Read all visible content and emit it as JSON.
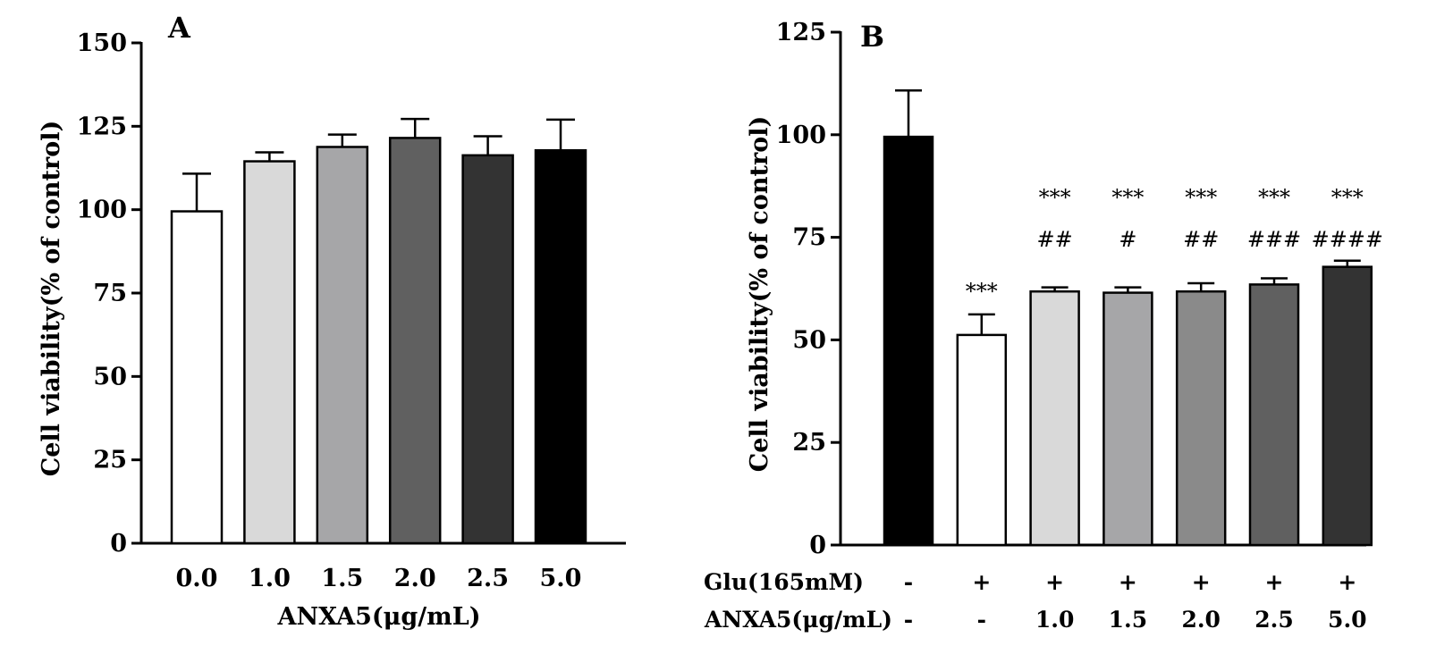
{
  "chart_data": [
    {
      "type": "bar",
      "panel_label": "A",
      "title": "",
      "xlabel": "ANXA5(μg/mL)",
      "ylabel": "Cell viability(% of control)",
      "ylim": [
        0,
        150
      ],
      "yticks": [
        "0",
        "25",
        "50",
        "75",
        "100",
        "125",
        "150"
      ],
      "categories": [
        "0.0",
        "1.0",
        "1.5",
        "2.0",
        "2.5",
        "5.0"
      ],
      "values": [
        99.5,
        114.5,
        118.8,
        121.5,
        116.3,
        117.8
      ],
      "errors": [
        11.3,
        2.7,
        3.7,
        5.7,
        5.7,
        9.2
      ],
      "colors": [
        "#ffffff",
        "#d9d9d9",
        "#a6a6a8",
        "#606060",
        "#333333",
        "#000000"
      ]
    },
    {
      "type": "bar",
      "panel_label": "B",
      "title": "",
      "xlabel": "",
      "ylabel": "Cell viability(% of control)",
      "ylim": [
        0,
        125
      ],
      "yticks": [
        "0",
        "25",
        "50",
        "75",
        "100",
        "125"
      ],
      "conditions": [
        {
          "label": "Glu(165mM)",
          "values": [
            "-",
            "+",
            "+",
            "+",
            "+",
            "+",
            "+"
          ]
        },
        {
          "label": "ANXA5(μg/mL)",
          "values": [
            "-",
            "-",
            "1.0",
            "1.5",
            "2.0",
            "2.5",
            "5.0"
          ]
        }
      ],
      "values": [
        99.5,
        51.2,
        61.8,
        61.5,
        61.8,
        63.5,
        67.8
      ],
      "errors": [
        11.3,
        5.0,
        1.0,
        1.3,
        2.0,
        1.5,
        1.5
      ],
      "colors": [
        "#000000",
        "#ffffff",
        "#d9d9d9",
        "#a6a6a8",
        "#8a8a8a",
        "#606060",
        "#333333"
      ],
      "stars": [
        "",
        "***",
        "***",
        "***",
        "***",
        "***",
        "***"
      ],
      "hashes": [
        "",
        "",
        "##",
        "#",
        "##",
        "###",
        "####"
      ]
    }
  ]
}
